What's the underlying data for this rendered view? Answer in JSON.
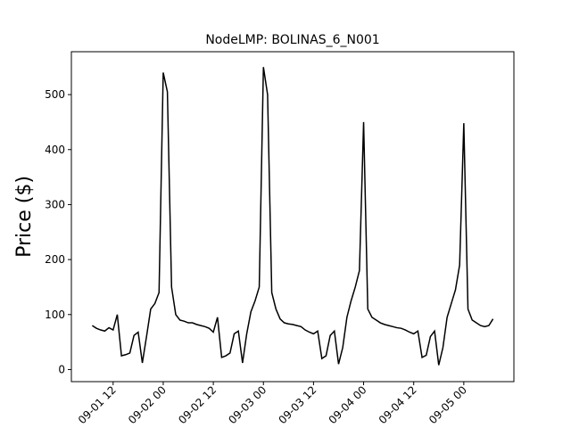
{
  "chart_data": {
    "type": "line",
    "title": "NodeLMP: BOLINAS_6_N001",
    "y_label": "Price ($)",
    "color": "#000000",
    "x": [
      "09-01 07",
      "09-01 08",
      "09-01 09",
      "09-01 10",
      "09-01 11",
      "09-01 12",
      "09-01 13",
      "09-01 14",
      "09-01 15",
      "09-01 16",
      "09-01 17",
      "09-01 18",
      "09-01 19",
      "09-01 20",
      "09-01 21",
      "09-01 22",
      "09-01 23",
      "09-02 00",
      "09-02 01",
      "09-02 02",
      "09-02 03",
      "09-02 04",
      "09-02 05",
      "09-02 06",
      "09-02 07",
      "09-02 08",
      "09-02 09",
      "09-02 10",
      "09-02 11",
      "09-02 12",
      "09-02 13",
      "09-02 14",
      "09-02 15",
      "09-02 16",
      "09-02 17",
      "09-02 18",
      "09-02 19",
      "09-02 20",
      "09-02 21",
      "09-02 22",
      "09-02 23",
      "09-03 00",
      "09-03 01",
      "09-03 02",
      "09-03 03",
      "09-03 04",
      "09-03 05",
      "09-03 06",
      "09-03 07",
      "09-03 08",
      "09-03 09",
      "09-03 10",
      "09-03 11",
      "09-03 12",
      "09-03 13",
      "09-03 14",
      "09-03 15",
      "09-03 16",
      "09-03 17",
      "09-03 18",
      "09-03 19",
      "09-03 20",
      "09-03 21",
      "09-03 22",
      "09-03 23",
      "09-04 00",
      "09-04 01",
      "09-04 02",
      "09-04 03",
      "09-04 04",
      "09-04 05",
      "09-04 06",
      "09-04 07",
      "09-04 08",
      "09-04 09",
      "09-04 10",
      "09-04 11",
      "09-04 12",
      "09-04 13",
      "09-04 14",
      "09-04 15",
      "09-04 16",
      "09-04 17",
      "09-04 18",
      "09-04 19",
      "09-04 20",
      "09-04 21",
      "09-04 22",
      "09-04 23",
      "09-05 00",
      "09-05 01",
      "09-05 02",
      "09-05 03",
      "09-05 04",
      "09-05 05",
      "09-05 06",
      "09-05 07"
    ],
    "values": [
      80,
      75,
      72,
      70,
      76,
      72,
      100,
      25,
      27,
      30,
      62,
      68,
      12,
      60,
      110,
      120,
      140,
      540,
      505,
      150,
      100,
      90,
      88,
      85,
      85,
      82,
      80,
      78,
      75,
      68,
      95,
      22,
      25,
      30,
      65,
      70,
      12,
      65,
      105,
      125,
      150,
      550,
      500,
      140,
      110,
      92,
      85,
      83,
      82,
      80,
      78,
      72,
      68,
      65,
      70,
      20,
      25,
      62,
      70,
      10,
      40,
      95,
      125,
      150,
      180,
      450,
      110,
      95,
      90,
      85,
      82,
      80,
      78,
      76,
      75,
      72,
      68,
      65,
      70,
      22,
      26,
      60,
      70,
      8,
      40,
      95,
      120,
      145,
      190,
      448,
      110,
      90,
      85,
      80,
      78,
      80,
      92
    ],
    "xlim": [
      "09-01 02",
      "09-05 12"
    ],
    "xticks": [
      "09-01 12",
      "09-02 00",
      "09-02 12",
      "09-03 00",
      "09-03 12",
      "09-04 00",
      "09-04 12",
      "09-05 00"
    ],
    "ylim": [
      -22,
      578
    ],
    "yticks": [
      0,
      100,
      200,
      300,
      400,
      500
    ]
  }
}
